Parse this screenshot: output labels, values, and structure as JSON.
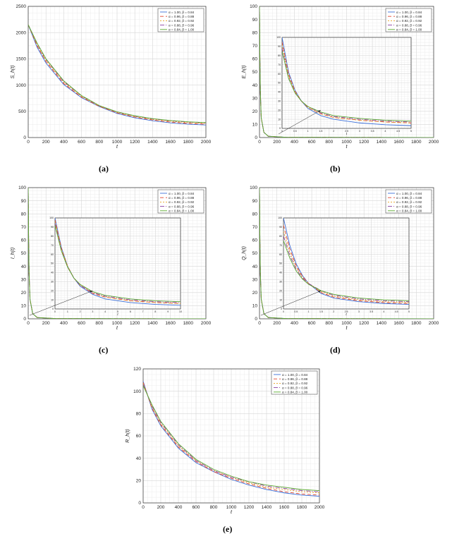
{
  "legend": {
    "entries": [
      "α = 1.00, β = 0.84",
      "α = 0.96, β = 0.88",
      "α = 0.92, β = 0.92",
      "α = 0.88, β = 0.96",
      "α = 0.84, β = 1.00"
    ],
    "colors": [
      "#3b6fd9",
      "#e0452e",
      "#e8a020",
      "#8a3fa0",
      "#5aaa30"
    ],
    "dashes": [
      "",
      "5,3",
      "2,2",
      "6,2,1,2",
      ""
    ],
    "placement": "top-right"
  },
  "chart_data": [
    {
      "id": "a",
      "type": "line",
      "caption": "(a)",
      "xlabel": "t",
      "ylabel": "S_h(t)",
      "xlim": [
        0,
        2000
      ],
      "ylim": [
        0,
        2500
      ],
      "xticks": [
        0,
        200,
        400,
        600,
        800,
        1000,
        1200,
        1400,
        1600,
        1800,
        2000
      ],
      "yticks": [
        0,
        500,
        1000,
        1500,
        2000,
        2500
      ],
      "x": [
        0,
        100,
        200,
        400,
        600,
        800,
        1000,
        1200,
        1400,
        1600,
        1800,
        2000
      ],
      "series": [
        {
          "name": "α = 1.00, β = 0.84",
          "values": [
            2150,
            1720,
            1420,
            1010,
            760,
            590,
            460,
            375,
            320,
            280,
            255,
            240
          ]
        },
        {
          "name": "α = 0.96, β = 0.88",
          "values": [
            2150,
            1750,
            1450,
            1030,
            770,
            595,
            470,
            390,
            335,
            295,
            270,
            255
          ]
        },
        {
          "name": "α = 0.92, β = 0.92",
          "values": [
            2150,
            1770,
            1470,
            1050,
            785,
            600,
            480,
            400,
            345,
            310,
            285,
            270
          ]
        },
        {
          "name": "α = 0.88, β = 0.96",
          "values": [
            2150,
            1790,
            1490,
            1065,
            795,
            605,
            485,
            410,
            355,
            320,
            295,
            280
          ]
        },
        {
          "name": "α = 0.84, β = 1.00",
          "values": [
            2150,
            1800,
            1500,
            1080,
            800,
            610,
            490,
            415,
            360,
            325,
            300,
            285
          ]
        }
      ]
    },
    {
      "id": "b",
      "type": "line",
      "caption": "(b)",
      "xlabel": "t",
      "ylabel": "E_h(t)",
      "xlim": [
        0,
        2000
      ],
      "ylim": [
        0,
        100
      ],
      "xticks": [
        0,
        200,
        400,
        600,
        800,
        1000,
        1200,
        1400,
        1600,
        1800,
        2000
      ],
      "yticks": [
        0,
        10,
        20,
        30,
        40,
        50,
        60,
        70,
        80,
        90,
        100
      ],
      "x": [
        0,
        2,
        5,
        10,
        20,
        50,
        100,
        300,
        1000,
        2000
      ],
      "series": [
        {
          "name": "α = 1.00, β = 0.84",
          "values": [
            100,
            85,
            60,
            35,
            15,
            4,
            1,
            0.2,
            0.1,
            0
          ]
        },
        {
          "name": "α = 0.96, β = 0.88",
          "values": [
            100,
            85,
            60,
            35,
            15,
            4,
            1,
            0.2,
            0.1,
            0
          ]
        },
        {
          "name": "α = 0.92, β = 0.92",
          "values": [
            100,
            85,
            60,
            35,
            15,
            4,
            1,
            0.2,
            0.1,
            0
          ]
        },
        {
          "name": "α = 0.88, β = 0.96",
          "values": [
            100,
            85,
            60,
            35,
            15,
            4,
            1,
            0.2,
            0.1,
            0
          ]
        },
        {
          "name": "α = 0.84, β = 1.00",
          "values": [
            100,
            85,
            60,
            35,
            15,
            4,
            1,
            0.2,
            0.1,
            0
          ]
        }
      ],
      "inset": {
        "xlim": [
          0,
          5
        ],
        "ylim": [
          0,
          100
        ],
        "xticks": [
          0,
          0.5,
          1,
          1.5,
          2,
          2.5,
          3,
          3.5,
          4,
          4.5,
          5
        ],
        "yticks": [
          0,
          10,
          20,
          30,
          40,
          50,
          60,
          70,
          80,
          90,
          100
        ],
        "x": [
          0,
          0.25,
          0.5,
          0.75,
          1,
          1.5,
          2,
          3,
          4,
          5
        ],
        "series": [
          {
            "values": [
              100,
              62,
              42,
              30,
              22,
              14,
              10,
              6,
              4,
              3
            ]
          },
          {
            "values": [
              95,
              60,
              41,
              30,
              23,
              16,
              12,
              9,
              7,
              6
            ]
          },
          {
            "values": [
              92,
              58,
              40,
              30,
              23,
              16,
              12,
              9,
              7,
              6
            ]
          },
          {
            "values": [
              88,
              56,
              39,
              30,
              24,
              17,
              13,
              10,
              8,
              7
            ]
          },
          {
            "values": [
              85,
              55,
              39,
              30,
              24,
              18,
              14,
              11,
              9,
              8
            ]
          }
        ]
      }
    },
    {
      "id": "c",
      "type": "line",
      "caption": "(c)",
      "xlabel": "t",
      "ylabel": "I_h(t)",
      "xlim": [
        0,
        2000
      ],
      "ylim": [
        0,
        100
      ],
      "xticks": [
        0,
        200,
        400,
        600,
        800,
        1000,
        1200,
        1400,
        1600,
        1800,
        2000
      ],
      "yticks": [
        0,
        10,
        20,
        30,
        40,
        50,
        60,
        70,
        80,
        90,
        100
      ],
      "x": [
        0,
        2,
        5,
        10,
        20,
        50,
        100,
        300,
        1000,
        2000
      ],
      "series": [
        {
          "name": "α = 1.00, β = 0.84",
          "values": [
            100,
            85,
            60,
            35,
            15,
            4,
            1,
            0.2,
            0.1,
            0
          ]
        },
        {
          "name": "α = 0.96, β = 0.88",
          "values": [
            100,
            85,
            60,
            35,
            15,
            4,
            1,
            0.2,
            0.1,
            0
          ]
        },
        {
          "name": "α = 0.92, β = 0.92",
          "values": [
            100,
            85,
            60,
            35,
            15,
            4,
            1,
            0.2,
            0.1,
            0
          ]
        },
        {
          "name": "α = 0.88, β = 0.96",
          "values": [
            100,
            85,
            60,
            35,
            15,
            4,
            1,
            0.2,
            0.1,
            0
          ]
        },
        {
          "name": "α = 0.84, β = 1.00",
          "values": [
            100,
            85,
            60,
            35,
            15,
            4,
            1,
            0.2,
            0.1,
            0
          ]
        }
      ],
      "inset": {
        "xlim": [
          0,
          10
        ],
        "ylim": [
          0,
          100
        ],
        "xticks": [
          0,
          1,
          2,
          3,
          4,
          5,
          6,
          7,
          8,
          9,
          10
        ],
        "yticks": [
          0,
          10,
          20,
          30,
          40,
          50,
          60,
          70,
          80,
          90,
          100
        ],
        "x": [
          0,
          0.5,
          1,
          1.5,
          2,
          3,
          4,
          6,
          8,
          10
        ],
        "series": [
          {
            "values": [
              100,
              68,
              47,
              34,
              25,
              16,
              11,
              7,
              5,
              4
            ]
          },
          {
            "values": [
              98,
              67,
              47,
              34,
              26,
              17,
              13,
              9,
              7,
              6
            ]
          },
          {
            "values": [
              96,
              66,
              47,
              34,
              26,
              18,
              13,
              9,
              7,
              6
            ]
          },
          {
            "values": [
              94,
              65,
              46,
              34,
              26,
              18,
              14,
              10,
              8,
              7
            ]
          },
          {
            "values": [
              92,
              64,
              46,
              34,
              27,
              19,
              15,
              11,
              9,
              8
            ]
          }
        ]
      }
    },
    {
      "id": "d",
      "type": "line",
      "caption": "(d)",
      "xlabel": "t",
      "ylabel": "Q_h(t)",
      "xlim": [
        0,
        2000
      ],
      "ylim": [
        0,
        100
      ],
      "xticks": [
        0,
        200,
        400,
        600,
        800,
        1000,
        1200,
        1400,
        1600,
        1800,
        2000
      ],
      "yticks": [
        0,
        10,
        20,
        30,
        40,
        50,
        60,
        70,
        80,
        90,
        100
      ],
      "x": [
        0,
        2,
        5,
        10,
        20,
        50,
        100,
        300,
        1000,
        2000
      ],
      "series": [
        {
          "name": "α = 1.00, β = 0.84",
          "values": [
            100,
            85,
            60,
            35,
            15,
            4,
            1,
            0.2,
            0.1,
            0
          ]
        },
        {
          "name": "α = 0.96, β = 0.88",
          "values": [
            100,
            85,
            60,
            35,
            15,
            4,
            1,
            0.2,
            0.1,
            0
          ]
        },
        {
          "name": "α = 0.92, β = 0.92",
          "values": [
            100,
            85,
            60,
            35,
            15,
            4,
            1,
            0.2,
            0.1,
            0
          ]
        },
        {
          "name": "α = 0.88, β = 0.96",
          "values": [
            100,
            85,
            60,
            35,
            15,
            4,
            1,
            0.2,
            0.1,
            0
          ]
        },
        {
          "name": "α = 0.84, β = 1.00",
          "values": [
            100,
            85,
            60,
            35,
            15,
            4,
            1,
            0.2,
            0.1,
            0
          ]
        }
      ],
      "inset": {
        "xlim": [
          0,
          5
        ],
        "ylim": [
          0,
          100
        ],
        "xticks": [
          0,
          0.5,
          1,
          1.5,
          2,
          2.5,
          3,
          3.5,
          4,
          4.5,
          5
        ],
        "yticks": [
          0,
          10,
          20,
          30,
          40,
          50,
          60,
          70,
          80,
          90,
          100
        ],
        "x": [
          0,
          0.25,
          0.5,
          0.75,
          1,
          1.5,
          2,
          3,
          4,
          5
        ],
        "series": [
          {
            "values": [
              100,
              70,
              50,
              37,
              28,
              17,
              12,
              8,
              6,
              5
            ]
          },
          {
            "values": [
              92,
              66,
              48,
              36,
              28,
              18,
              13,
              9,
              7,
              6
            ]
          },
          {
            "values": [
              85,
              62,
              46,
              35,
              28,
              19,
              14,
              10,
              8,
              7
            ]
          },
          {
            "values": [
              80,
              59,
              44,
              34,
              28,
              20,
              15,
              11,
              9,
              8
            ]
          },
          {
            "values": [
              75,
              56,
              42,
              33,
              27,
              20,
              16,
              12,
              10,
              9
            ]
          }
        ]
      }
    },
    {
      "id": "e",
      "type": "line",
      "caption": "(e)",
      "xlabel": "t",
      "ylabel": "R_h(t)",
      "xlim": [
        0,
        2000
      ],
      "ylim": [
        0,
        120
      ],
      "xticks": [
        0,
        200,
        400,
        600,
        800,
        1000,
        1200,
        1400,
        1600,
        1800,
        2000
      ],
      "yticks": [
        0,
        20,
        40,
        60,
        80,
        100,
        120
      ],
      "x": [
        0,
        100,
        200,
        400,
        600,
        800,
        1000,
        1200,
        1400,
        1600,
        1800,
        2000
      ],
      "series": [
        {
          "name": "α = 1.00, β = 0.84",
          "values": [
            109,
            84,
            69,
            49,
            36,
            28,
            21,
            16,
            12,
            9,
            7,
            6
          ]
        },
        {
          "name": "α = 0.96, β = 0.88",
          "values": [
            108,
            85,
            70,
            50,
            37,
            28,
            22,
            17,
            13,
            10,
            8,
            7
          ]
        },
        {
          "name": "α = 0.92, β = 0.92",
          "values": [
            107,
            86,
            71,
            51,
            38,
            29,
            23,
            18,
            14,
            12,
            10,
            9
          ]
        },
        {
          "name": "α = 0.88, β = 0.96",
          "values": [
            106,
            87,
            72,
            52,
            38,
            29,
            23,
            19,
            15,
            13,
            11,
            10
          ]
        },
        {
          "name": "α = 0.84, β = 1.00",
          "values": [
            105,
            88,
            73,
            53,
            39,
            30,
            24,
            19,
            16,
            14,
            12,
            11
          ]
        }
      ]
    }
  ]
}
